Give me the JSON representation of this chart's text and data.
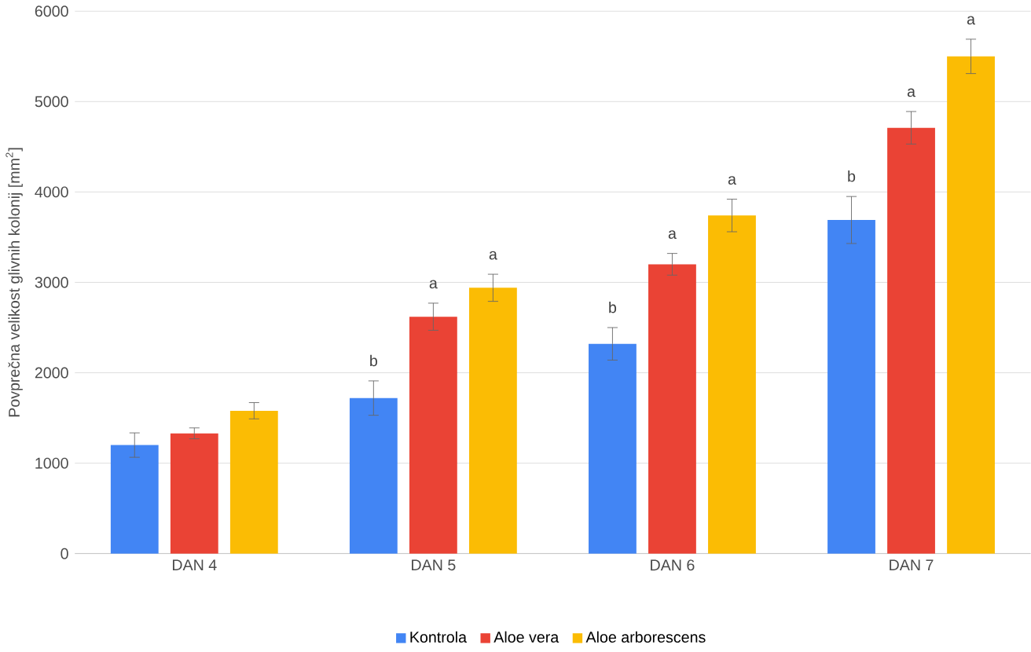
{
  "chart_data": {
    "type": "bar",
    "ylabel": "Povprečna velikost glivnih kolonij [mm$^{2}$]",
    "categories": [
      "DAN 4",
      "DAN 5",
      "DAN 6",
      "DAN 7"
    ],
    "series": [
      {
        "name": "Kontrola",
        "color": "#4285f4",
        "values": [
          1200,
          1720,
          2320,
          3690
        ],
        "errors": [
          135,
          190,
          180,
          260
        ],
        "value_labels": [
          null,
          "b",
          "b",
          "b"
        ]
      },
      {
        "name": "Aloe vera",
        "color": "#ea4335",
        "values": [
          1330,
          2620,
          3200,
          4710
        ],
        "errors": [
          60,
          150,
          120,
          180
        ],
        "value_labels": [
          null,
          "a",
          "a",
          "a"
        ]
      },
      {
        "name": "Aloe arborescens",
        "color": "#fbbc04",
        "values": [
          1580,
          2940,
          3740,
          5500
        ],
        "errors": [
          90,
          150,
          180,
          190
        ],
        "value_labels": [
          null,
          "a",
          "a",
          "a"
        ]
      }
    ],
    "ylim": [
      0,
      6000
    ],
    "yticks": [
      0,
      1000,
      2000,
      3000,
      4000,
      5000,
      6000
    ],
    "grid": "y",
    "legend": "bottom"
  }
}
